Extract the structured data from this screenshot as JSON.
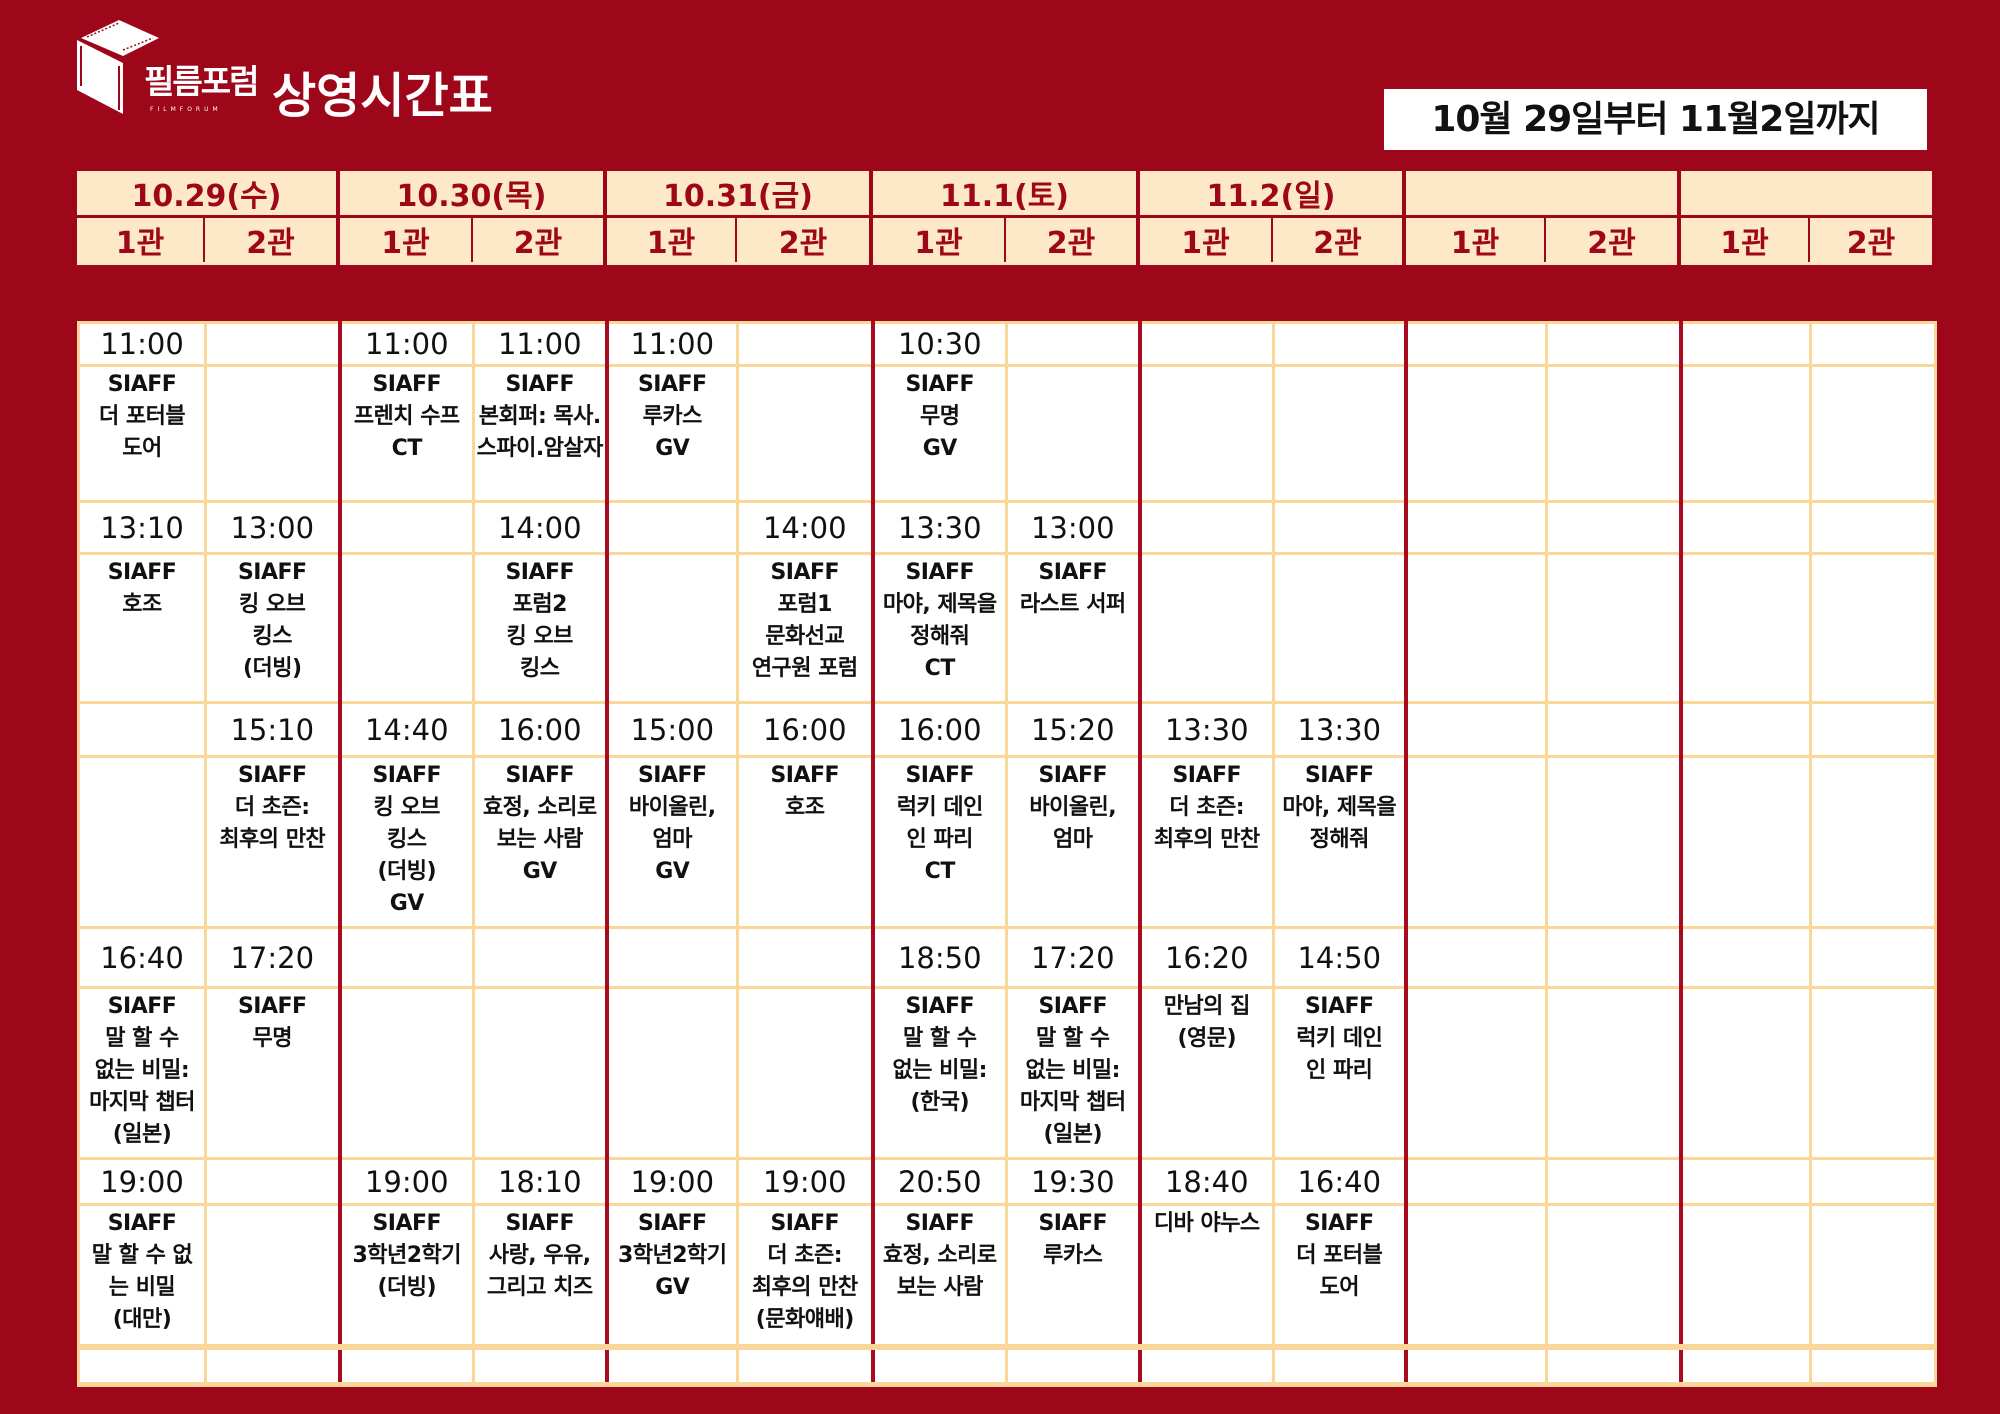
{
  "header": {
    "logo_text": "필름포럼",
    "logo_sub": "FILMFORUM",
    "title": "상영시간표",
    "date_range": "10월 29일부터 11월2일까지"
  },
  "colors": {
    "background": "#9e0619",
    "header_fill": "#fde8c8",
    "grid_line": "#f9d79a",
    "day_separator": "#a80b1e"
  },
  "days": [
    {
      "label": "10.29(수)",
      "halls": [
        "1관",
        "2관"
      ]
    },
    {
      "label": "10.30(목)",
      "halls": [
        "1관",
        "2관"
      ]
    },
    {
      "label": "10.31(금)",
      "halls": [
        "1관",
        "2관"
      ]
    },
    {
      "label": "11.1(토)",
      "halls": [
        "1관",
        "2관"
      ]
    },
    {
      "label": "11.2(일)",
      "halls": [
        "1관",
        "2관"
      ]
    },
    {
      "label": "",
      "halls": [
        "1관",
        "2관"
      ]
    },
    {
      "label": "",
      "halls": [
        "1관",
        "2관"
      ]
    }
  ],
  "slots": [
    {
      "times": [
        "11:00",
        "",
        "11:00",
        "11:00",
        "11:00",
        "",
        "10:30",
        "",
        "",
        "",
        "",
        "",
        "",
        ""
      ],
      "programs": [
        "SIAFF\n더 포터블\n도어",
        "",
        "SIAFF\n프렌치 수프\nCT",
        "SIAFF\n본회퍼: 목사.\n스파이.암살자",
        "SIAFF\n루카스\nGV",
        "",
        "SIAFF\n무명\nGV",
        "",
        "",
        "",
        "",
        "",
        "",
        ""
      ]
    },
    {
      "times": [
        "13:10",
        "13:00",
        "",
        "14:00",
        "",
        "14:00",
        "13:30",
        "13:00",
        "",
        "",
        "",
        "",
        "",
        ""
      ],
      "programs": [
        "SIAFF\n호조",
        "SIAFF\n킹  오브\n킹스\n(더빙)",
        "",
        "SIAFF\n포럼2\n킹 오브\n킹스",
        "",
        "SIAFF\n포럼1\n문화선교\n연구원 포럼",
        "SIAFF\n마야, 제목을\n정해줘\nCT",
        "SIAFF\n라스트 서퍼",
        "",
        "",
        "",
        "",
        "",
        ""
      ]
    },
    {
      "times": [
        "",
        "15:10",
        "14:40",
        "16:00",
        "15:00",
        "16:00",
        "16:00",
        "15:20",
        "13:30",
        "13:30",
        "",
        "",
        "",
        ""
      ],
      "programs": [
        "",
        "SIAFF\n더 초즌:\n최후의 만찬",
        "SIAFF\n킹  오브\n킹스\n(더빙)\nGV",
        "SIAFF\n효정, 소리로\n보는 사람\nGV",
        "SIAFF\n바이올린,\n엄마\nGV",
        "SIAFF\n호조",
        "SIAFF\n럭키 데인\n인 파리\nCT",
        "SIAFF\n바이올린,\n엄마",
        "SIAFF\n더 초즌:\n최후의 만찬",
        "SIAFF\n마야, 제목을\n정해줘",
        "",
        "",
        "",
        ""
      ]
    },
    {
      "times": [
        "16:40",
        "17:20",
        "",
        "",
        "",
        "",
        "18:50",
        "17:20",
        "16:20",
        "14:50",
        "",
        "",
        "",
        ""
      ],
      "programs": [
        "SIAFF\n말 할 수\n없는 비밀:\n마지막 챕터\n(일본)",
        "SIAFF\n무명",
        "",
        "",
        "",
        "",
        "SIAFF\n말 할 수\n없는 비밀:\n(한국)",
        "SIAFF\n말 할 수\n없는 비밀:\n마지막 챕터\n(일본)",
        "만남의 집\n(영문)",
        "SIAFF\n럭키 데인\n인 파리",
        "",
        "",
        "",
        ""
      ]
    },
    {
      "times": [
        "19:00",
        "",
        "19:00",
        "18:10",
        "19:00",
        "19:00",
        "20:50",
        "19:30",
        "18:40",
        "16:40",
        "",
        "",
        "",
        ""
      ],
      "programs": [
        "SIAFF\n말 할 수 없\n는 비밀\n(대만)",
        "",
        "SIAFF\n3학년2학기\n(더빙)",
        "SIAFF\n사랑, 우유,\n그리고 치즈",
        "SIAFF\n3학년2학기\nGV",
        "SIAFF\n더 초즌:\n최후의 만찬\n(문화얘배)",
        "SIAFF\n효정, 소리로\n보는 사람",
        "SIAFF\n루카스",
        "디바 야누스",
        "SIAFF\n더 포터블\n도어",
        "",
        "",
        "",
        ""
      ]
    }
  ]
}
